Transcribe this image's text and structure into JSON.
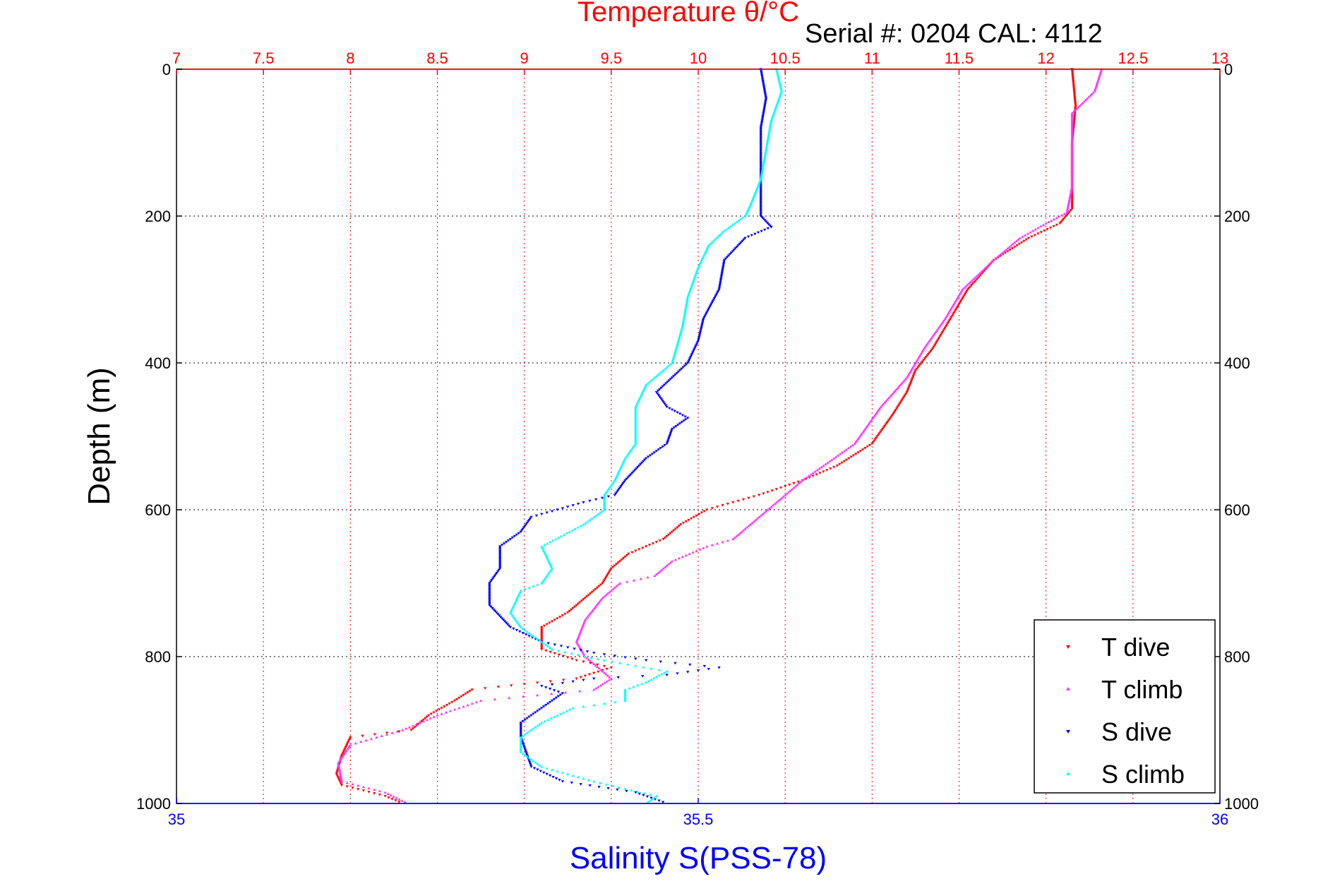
{
  "chart_data": {
    "type": "scatter",
    "title": "Temperature θ/°C",
    "subtitle": "Serial #: 0204  CAL: 4112",
    "xlabel": "Salinity S(PSS-78)",
    "ylabel": "Depth (m)",
    "top_axis": {
      "ticks": [
        "7",
        "7.5",
        "8",
        "8.5",
        "9",
        "9.5",
        "10",
        "10.5",
        "11",
        "11.5",
        "12",
        "12.5",
        "13"
      ],
      "range": [
        7,
        13
      ]
    },
    "bottom_axis": {
      "ticks": [
        "35",
        "35.5",
        "36"
      ],
      "range": [
        35,
        36
      ]
    },
    "y_axis": {
      "ticks": [
        "0",
        "200",
        "400",
        "600",
        "800",
        "1000"
      ],
      "range": [
        0,
        1000
      ],
      "reversed": true
    },
    "grid": true,
    "legend_position": "bottom-right",
    "colors": {
      "temperature_axis": "#ff0000",
      "salinity_axis": "#0000ff",
      "t_dive": "#ff0000",
      "t_climb": "#ff33ff",
      "s_dive": "#0000ff",
      "s_climb": "#00ffff"
    },
    "series": [
      {
        "name": "T dive",
        "axis": "temperature",
        "points": [
          [
            12.15,
            0
          ],
          [
            12.17,
            50
          ],
          [
            12.15,
            100
          ],
          [
            12.15,
            150
          ],
          [
            12.15,
            190
          ],
          [
            12.08,
            210
          ],
          [
            11.9,
            230
          ],
          [
            11.7,
            260
          ],
          [
            11.55,
            300
          ],
          [
            11.45,
            340
          ],
          [
            11.35,
            380
          ],
          [
            11.25,
            410
          ],
          [
            11.2,
            440
          ],
          [
            11.12,
            470
          ],
          [
            11.0,
            510
          ],
          [
            10.8,
            540
          ],
          [
            10.6,
            560
          ],
          [
            10.35,
            580
          ],
          [
            10.05,
            600
          ],
          [
            9.9,
            620
          ],
          [
            9.8,
            640
          ],
          [
            9.6,
            660
          ],
          [
            9.5,
            680
          ],
          [
            9.45,
            700
          ],
          [
            9.35,
            720
          ],
          [
            9.25,
            740
          ],
          [
            9.1,
            760
          ],
          [
            9.1,
            790
          ],
          [
            9.3,
            805
          ],
          [
            9.5,
            815
          ],
          [
            9.3,
            830
          ],
          [
            8.7,
            845
          ],
          [
            8.6,
            860
          ],
          [
            8.45,
            880
          ],
          [
            8.35,
            900
          ],
          [
            8.0,
            910
          ],
          [
            7.95,
            935
          ],
          [
            7.92,
            960
          ],
          [
            7.95,
            975
          ],
          [
            8.2,
            990
          ],
          [
            8.3,
            1000
          ]
        ]
      },
      {
        "name": "T climb",
        "axis": "temperature",
        "points": [
          [
            12.32,
            0
          ],
          [
            12.28,
            30
          ],
          [
            12.15,
            60
          ],
          [
            12.15,
            110
          ],
          [
            12.15,
            160
          ],
          [
            12.12,
            195
          ],
          [
            12.0,
            210
          ],
          [
            11.85,
            230
          ],
          [
            11.7,
            260
          ],
          [
            11.52,
            300
          ],
          [
            11.42,
            340
          ],
          [
            11.3,
            380
          ],
          [
            11.2,
            420
          ],
          [
            11.05,
            460
          ],
          [
            10.9,
            510
          ],
          [
            10.6,
            560
          ],
          [
            10.4,
            600
          ],
          [
            10.3,
            620
          ],
          [
            10.2,
            640
          ],
          [
            10.05,
            650
          ],
          [
            9.85,
            670
          ],
          [
            9.75,
            690
          ],
          [
            9.55,
            700
          ],
          [
            9.45,
            720
          ],
          [
            9.35,
            750
          ],
          [
            9.3,
            780
          ],
          [
            9.35,
            800
          ],
          [
            9.5,
            830
          ],
          [
            9.4,
            845
          ],
          [
            8.75,
            860
          ],
          [
            8.5,
            880
          ],
          [
            8.3,
            900
          ],
          [
            8.0,
            920
          ],
          [
            7.93,
            945
          ],
          [
            7.95,
            970
          ],
          [
            8.2,
            985
          ],
          [
            8.33,
            1000
          ]
        ]
      },
      {
        "name": "S dive",
        "axis": "salinity",
        "points": [
          [
            35.56,
            0
          ],
          [
            35.565,
            40
          ],
          [
            35.56,
            80
          ],
          [
            35.56,
            120
          ],
          [
            35.56,
            160
          ],
          [
            35.56,
            200
          ],
          [
            35.57,
            215
          ],
          [
            35.545,
            230
          ],
          [
            35.525,
            260
          ],
          [
            35.52,
            300
          ],
          [
            35.505,
            340
          ],
          [
            35.5,
            370
          ],
          [
            35.49,
            400
          ],
          [
            35.46,
            440
          ],
          [
            35.47,
            460
          ],
          [
            35.49,
            475
          ],
          [
            35.475,
            490
          ],
          [
            35.47,
            510
          ],
          [
            35.45,
            530
          ],
          [
            35.43,
            560
          ],
          [
            35.42,
            580
          ],
          [
            35.39,
            590
          ],
          [
            35.365,
            600
          ],
          [
            35.34,
            610
          ],
          [
            35.33,
            630
          ],
          [
            35.31,
            650
          ],
          [
            35.31,
            680
          ],
          [
            35.3,
            700
          ],
          [
            35.3,
            730
          ],
          [
            35.32,
            760
          ],
          [
            35.35,
            780
          ],
          [
            35.4,
            795
          ],
          [
            35.45,
            805
          ],
          [
            35.52,
            815
          ],
          [
            35.47,
            825
          ],
          [
            35.4,
            830
          ],
          [
            35.35,
            840
          ],
          [
            35.37,
            850
          ],
          [
            35.35,
            870
          ],
          [
            35.33,
            890
          ],
          [
            35.33,
            910
          ],
          [
            35.335,
            930
          ],
          [
            35.34,
            950
          ],
          [
            35.37,
            970
          ],
          [
            35.44,
            985
          ],
          [
            35.47,
            1000
          ]
        ]
      },
      {
        "name": "S climb",
        "axis": "salinity",
        "points": [
          [
            35.575,
            0
          ],
          [
            35.58,
            30
          ],
          [
            35.57,
            70
          ],
          [
            35.565,
            110
          ],
          [
            35.56,
            150
          ],
          [
            35.55,
            185
          ],
          [
            35.545,
            200
          ],
          [
            35.525,
            220
          ],
          [
            35.51,
            240
          ],
          [
            35.5,
            270
          ],
          [
            35.49,
            310
          ],
          [
            35.485,
            350
          ],
          [
            35.475,
            400
          ],
          [
            35.45,
            430
          ],
          [
            35.44,
            460
          ],
          [
            35.44,
            490
          ],
          [
            35.44,
            510
          ],
          [
            35.43,
            530
          ],
          [
            35.42,
            560
          ],
          [
            35.41,
            580
          ],
          [
            35.41,
            600
          ],
          [
            35.39,
            620
          ],
          [
            35.35,
            650
          ],
          [
            35.36,
            680
          ],
          [
            35.35,
            700
          ],
          [
            35.33,
            710
          ],
          [
            35.32,
            740
          ],
          [
            35.33,
            760
          ],
          [
            35.36,
            790
          ],
          [
            35.41,
            805
          ],
          [
            35.47,
            820
          ],
          [
            35.45,
            835
          ],
          [
            35.43,
            845
          ],
          [
            35.43,
            860
          ],
          [
            35.38,
            870
          ],
          [
            35.35,
            890
          ],
          [
            35.33,
            910
          ],
          [
            35.33,
            930
          ],
          [
            35.35,
            950
          ],
          [
            35.4,
            970
          ],
          [
            35.46,
            990
          ],
          [
            35.45,
            1000
          ]
        ]
      }
    ]
  }
}
